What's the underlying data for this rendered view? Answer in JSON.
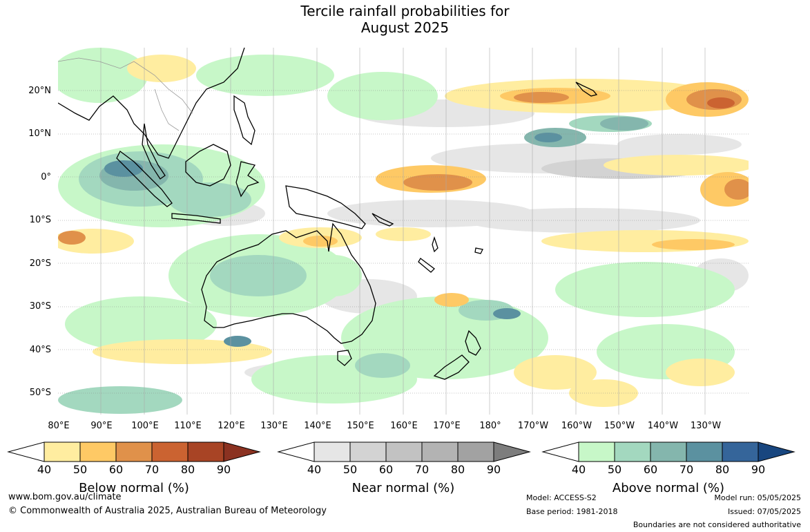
{
  "title": {
    "line1": "Tercile rainfall probabilities for",
    "line2": "August 2025"
  },
  "map": {
    "lat_labels": [
      "20°N",
      "10°N",
      "0°",
      "10°S",
      "20°S",
      "30°S",
      "40°S",
      "50°S"
    ],
    "lon_labels": [
      "80°E",
      "90°E",
      "100°E",
      "110°E",
      "120°E",
      "130°E",
      "140°E",
      "150°E",
      "160°E",
      "170°E",
      "180°",
      "170°W",
      "160°W",
      "150°W",
      "140°W",
      "130°W"
    ]
  },
  "colorbars": [
    {
      "name": "below",
      "title": "Below normal (%)",
      "ticks": [
        "40",
        "50",
        "60",
        "70",
        "80",
        "90"
      ],
      "colors": [
        "#ffffff",
        "#ffeda0",
        "#fec965",
        "#e0914a",
        "#cb6331",
        "#a84425",
        "#8b3221"
      ]
    },
    {
      "name": "near",
      "title": "Near normal (%)",
      "ticks": [
        "40",
        "50",
        "60",
        "70",
        "80",
        "90"
      ],
      "colors": [
        "#ffffff",
        "#e6e6e6",
        "#d3d3d3",
        "#c2c2c2",
        "#b3b3b3",
        "#a2a2a2",
        "#7d7d7d"
      ]
    },
    {
      "name": "above",
      "title": "Above normal (%)",
      "ticks": [
        "40",
        "50",
        "60",
        "70",
        "80",
        "90"
      ],
      "colors": [
        "#ffffff",
        "#c7f7c8",
        "#a3d8bf",
        "#84b6ad",
        "#5b91a0",
        "#35659a",
        "#18467f"
      ]
    }
  ],
  "footer": {
    "website": "www.bom.gov.au/climate",
    "copyright": "© Commonwealth of Australia 2025, Australian Bureau of Meteorology",
    "model": "Model: ACCESS-S2",
    "base_period": "Base period: 1981-2018",
    "model_run": "Model run: 05/05/2025",
    "issued": "Issued: 07/05/2025",
    "disclaimer": "Boundaries are not considered authoritative"
  }
}
